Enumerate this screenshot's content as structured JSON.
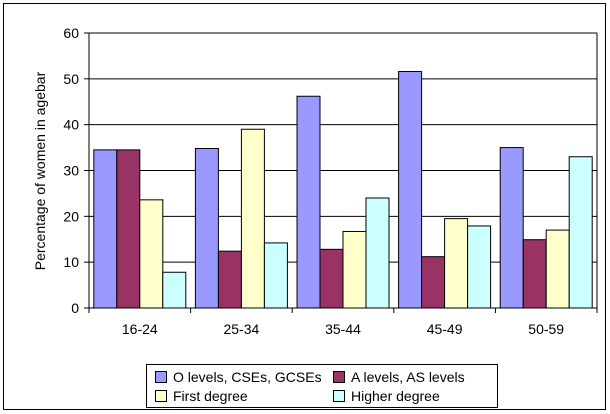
{
  "chart_data": {
    "type": "bar",
    "title": "",
    "xlabel": "",
    "ylabel": "Percentage of women in agebar",
    "ylim": [
      0,
      60
    ],
    "yticks": [
      0,
      10,
      20,
      30,
      40,
      50,
      60
    ],
    "grid": true,
    "legend_position": "bottom",
    "categories": [
      "16-24",
      "25-34",
      "35-44",
      "45-49",
      "50-59"
    ],
    "series": [
      {
        "name": "O levels, CSEs, GCSEs",
        "color": "#9999ff",
        "values": [
          34.5,
          34.8,
          46.2,
          51.6,
          35.0
        ]
      },
      {
        "name": "A levels, AS levels",
        "color": "#993366",
        "values": [
          34.5,
          12.4,
          12.8,
          11.2,
          14.9
        ]
      },
      {
        "name": "First degree",
        "color": "#ffffcc",
        "values": [
          23.6,
          39.0,
          16.7,
          19.5,
          17.0
        ]
      },
      {
        "name": "Higher degree",
        "color": "#ccffff",
        "values": [
          7.8,
          14.2,
          24.0,
          17.9,
          33.0
        ]
      }
    ]
  }
}
